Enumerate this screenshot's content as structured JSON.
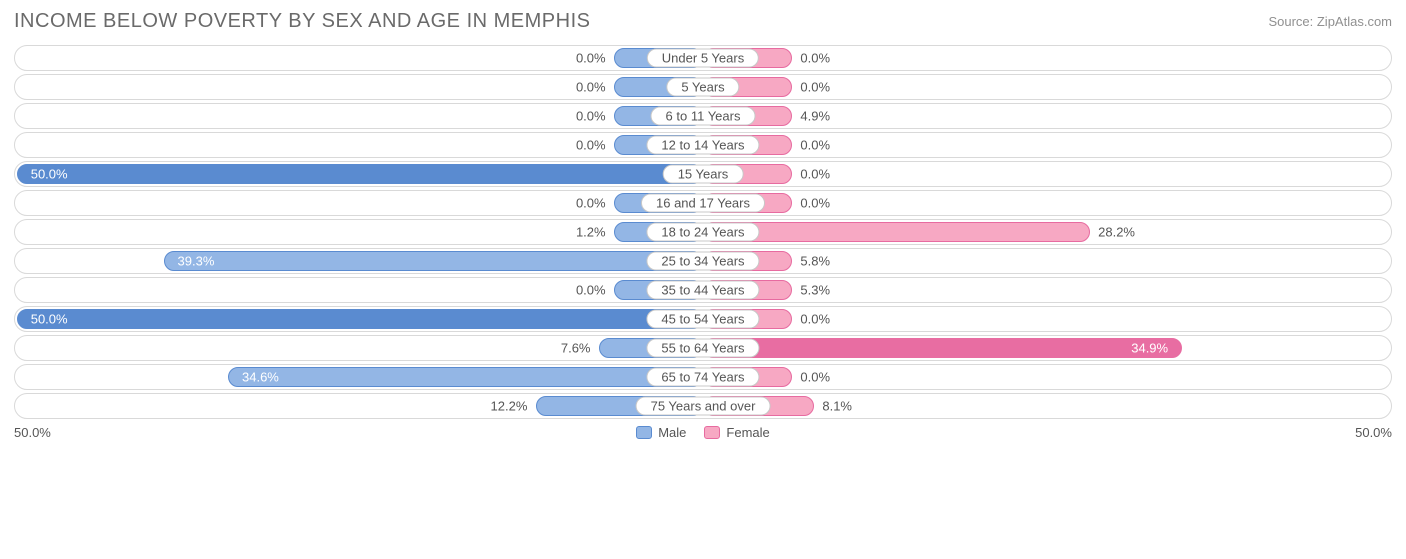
{
  "title": "INCOME BELOW POVERTY BY SEX AND AGE IN MEMPHIS",
  "source": "Source: ZipAtlas.com",
  "axis_max": 50.0,
  "axis_label_left": "50.0%",
  "axis_label_right": "50.0%",
  "min_bar_pct": 6.5,
  "colors": {
    "male_fill": "#93b6e5",
    "male_border": "#5a8bd0",
    "male_full": "#5a8bd0",
    "female_fill": "#f7a8c3",
    "female_border": "#e76ba0",
    "female_full": "#e86da2",
    "track_border": "#d9d9d9",
    "text": "#555555",
    "title_text": "#6a6a6a",
    "source_text": "#909090",
    "label_border": "#c8c8c8",
    "background": "#ffffff"
  },
  "legend": {
    "male": "Male",
    "female": "Female"
  },
  "rows": [
    {
      "label": "Under 5 Years",
      "male": 0.0,
      "female": 0.0
    },
    {
      "label": "5 Years",
      "male": 0.0,
      "female": 0.0
    },
    {
      "label": "6 to 11 Years",
      "male": 0.0,
      "female": 4.9
    },
    {
      "label": "12 to 14 Years",
      "male": 0.0,
      "female": 0.0
    },
    {
      "label": "15 Years",
      "male": 50.0,
      "female": 0.0
    },
    {
      "label": "16 and 17 Years",
      "male": 0.0,
      "female": 0.0
    },
    {
      "label": "18 to 24 Years",
      "male": 1.2,
      "female": 28.2
    },
    {
      "label": "25 to 34 Years",
      "male": 39.3,
      "female": 5.8
    },
    {
      "label": "35 to 44 Years",
      "male": 0.0,
      "female": 5.3
    },
    {
      "label": "45 to 54 Years",
      "male": 50.0,
      "female": 0.0
    },
    {
      "label": "55 to 64 Years",
      "male": 7.6,
      "female": 34.9
    },
    {
      "label": "65 to 74 Years",
      "male": 34.6,
      "female": 0.0
    },
    {
      "label": "75 Years and over",
      "male": 12.2,
      "female": 8.1
    }
  ]
}
